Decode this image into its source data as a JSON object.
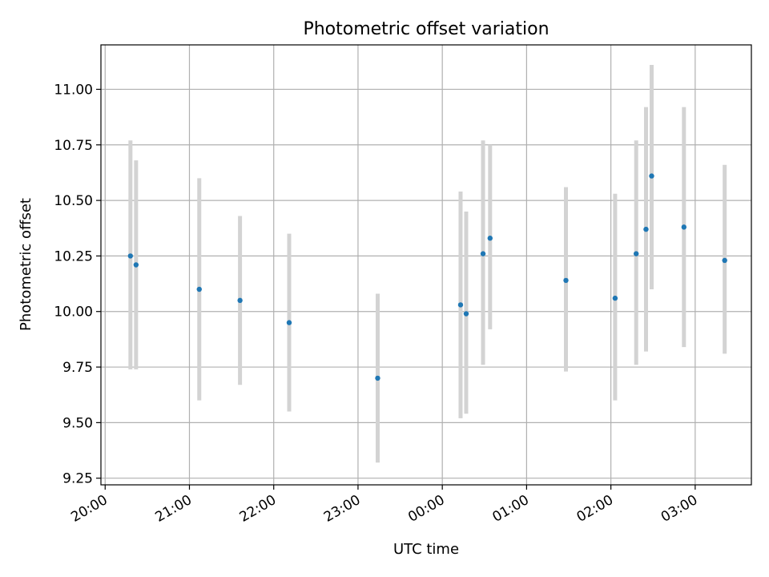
{
  "chart_data": {
    "type": "scatter",
    "title": "Photometric offset variation",
    "xlabel": "UTC time",
    "ylabel": "Photometric offset",
    "x_axis_kind": "time",
    "xlim": [
      "20:00",
      "03:40"
    ],
    "ylim": [
      9.22,
      11.2
    ],
    "grid": true,
    "xticks": [
      "20:00",
      "21:00",
      "22:00",
      "23:00",
      "00:00",
      "01:00",
      "02:00",
      "03:00"
    ],
    "yticks": [
      "9.25",
      "9.50",
      "9.75",
      "10.00",
      "10.25",
      "10.50",
      "10.75",
      "11.00"
    ],
    "series": [
      {
        "marker_color": "#1f77b4",
        "errorbar_color": "#d3d3d3",
        "points": [
          {
            "time": "20:18",
            "y": 10.25,
            "ylow": 9.74,
            "yhigh": 10.77
          },
          {
            "time": "20:22",
            "y": 10.21,
            "ylow": 9.74,
            "yhigh": 10.68
          },
          {
            "time": "21:07",
            "y": 10.1,
            "ylow": 9.6,
            "yhigh": 10.6
          },
          {
            "time": "21:36",
            "y": 10.05,
            "ylow": 9.67,
            "yhigh": 10.43
          },
          {
            "time": "22:11",
            "y": 9.95,
            "ylow": 9.55,
            "yhigh": 10.35
          },
          {
            "time": "23:14",
            "y": 9.7,
            "ylow": 9.32,
            "yhigh": 10.08
          },
          {
            "time": "00:13",
            "y": 10.03,
            "ylow": 9.52,
            "yhigh": 10.54
          },
          {
            "time": "00:17",
            "y": 9.99,
            "ylow": 9.54,
            "yhigh": 10.45
          },
          {
            "time": "00:29",
            "y": 10.26,
            "ylow": 9.76,
            "yhigh": 10.77
          },
          {
            "time": "00:34",
            "y": 10.33,
            "ylow": 9.92,
            "yhigh": 10.75
          },
          {
            "time": "01:28",
            "y": 10.14,
            "ylow": 9.73,
            "yhigh": 10.56
          },
          {
            "time": "02:03",
            "y": 10.06,
            "ylow": 9.6,
            "yhigh": 10.53
          },
          {
            "time": "02:18",
            "y": 10.26,
            "ylow": 9.76,
            "yhigh": 10.77
          },
          {
            "time": "02:25",
            "y": 10.37,
            "ylow": 9.82,
            "yhigh": 10.92
          },
          {
            "time": "02:29",
            "y": 10.61,
            "ylow": 10.1,
            "yhigh": 11.11
          },
          {
            "time": "02:52",
            "y": 10.38,
            "ylow": 9.84,
            "yhigh": 10.92
          },
          {
            "time": "03:21",
            "y": 10.23,
            "ylow": 9.81,
            "yhigh": 10.66
          }
        ]
      }
    ]
  }
}
